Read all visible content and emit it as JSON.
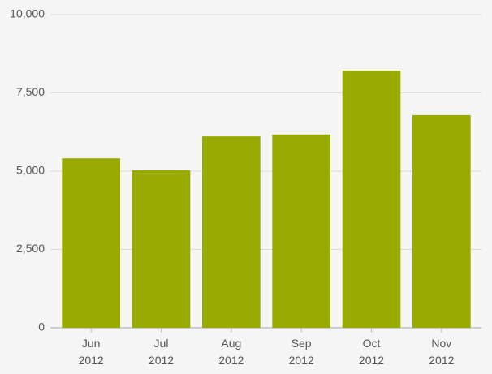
{
  "chart_data": {
    "type": "bar",
    "categories": [
      "Jun 2012",
      "Jul 2012",
      "Aug 2012",
      "Sep 2012",
      "Oct 2012",
      "Nov 2012"
    ],
    "values": [
      5410,
      5030,
      6110,
      6170,
      8210,
      6790
    ],
    "color": "#99aa00",
    "ylim": [
      0,
      10000
    ],
    "yticks": [
      0,
      {
        "value": 2500,
        "label": "2,500"
      },
      {
        "value": 5000,
        "label": "5,000"
      },
      {
        "value": 7500,
        "label": "7,500"
      },
      {
        "value": 10000,
        "label": "10,000"
      }
    ],
    "grid": true
  }
}
